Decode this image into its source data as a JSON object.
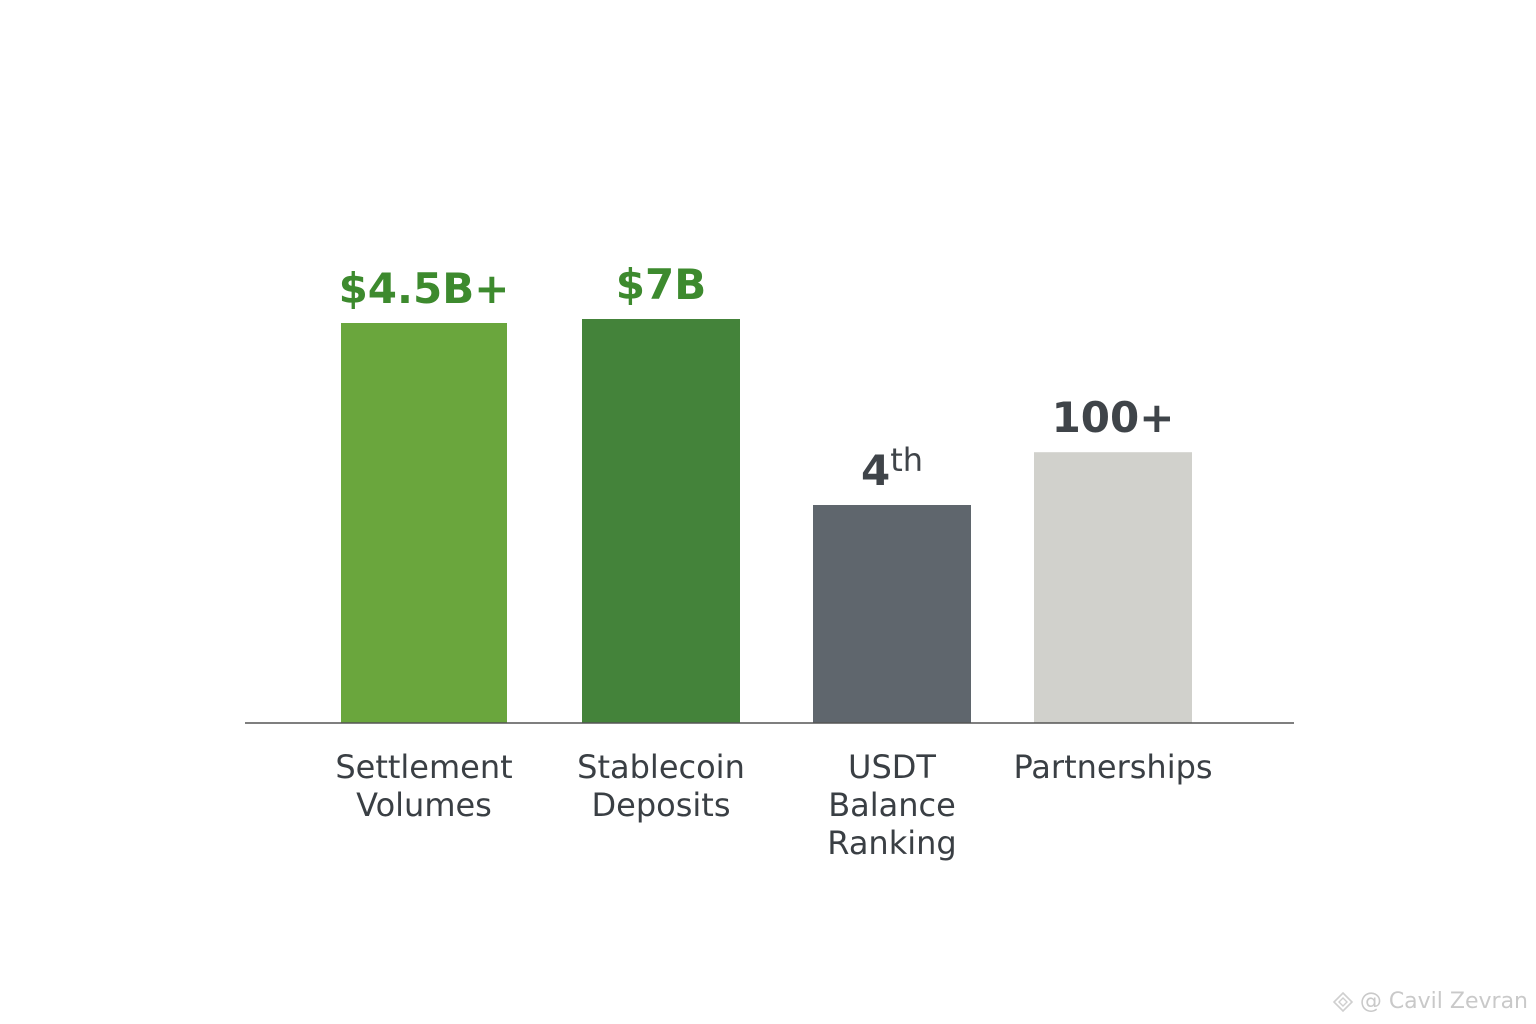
{
  "chart_data": {
    "type": "bar",
    "categories": [
      "Settlement Volumes",
      "Stablecoin Deposits",
      "USDT Balance Ranking",
      "Partnerships"
    ],
    "category_lines": [
      [
        "Settlement",
        "Volumes"
      ],
      [
        "Stablecoin",
        "Deposits"
      ],
      [
        "USDT",
        "Balance",
        "Ranking"
      ],
      [
        "Partnerships"
      ]
    ],
    "data_labels": [
      {
        "main": "$4.5B+",
        "sup": ""
      },
      {
        "main": "$7B",
        "sup": ""
      },
      {
        "main": "4",
        "sup": "th"
      },
      {
        "main": "100+",
        "sup": ""
      }
    ],
    "relative_heights": [
      1.0,
      1.01,
      0.545,
      0.677
    ],
    "bar_colors": [
      "#6aa63d",
      "#44833a",
      "#5f666d",
      "#d1d1cc"
    ],
    "label_colors": [
      "#3d8a2e",
      "#3d8a2e",
      "#3f4449",
      "#3f4449"
    ],
    "axis_color": "#555555",
    "grid": false,
    "legend": "none"
  },
  "watermark": {
    "text": "@ Cavil Zevran",
    "icon": "diamond-logo-icon"
  }
}
